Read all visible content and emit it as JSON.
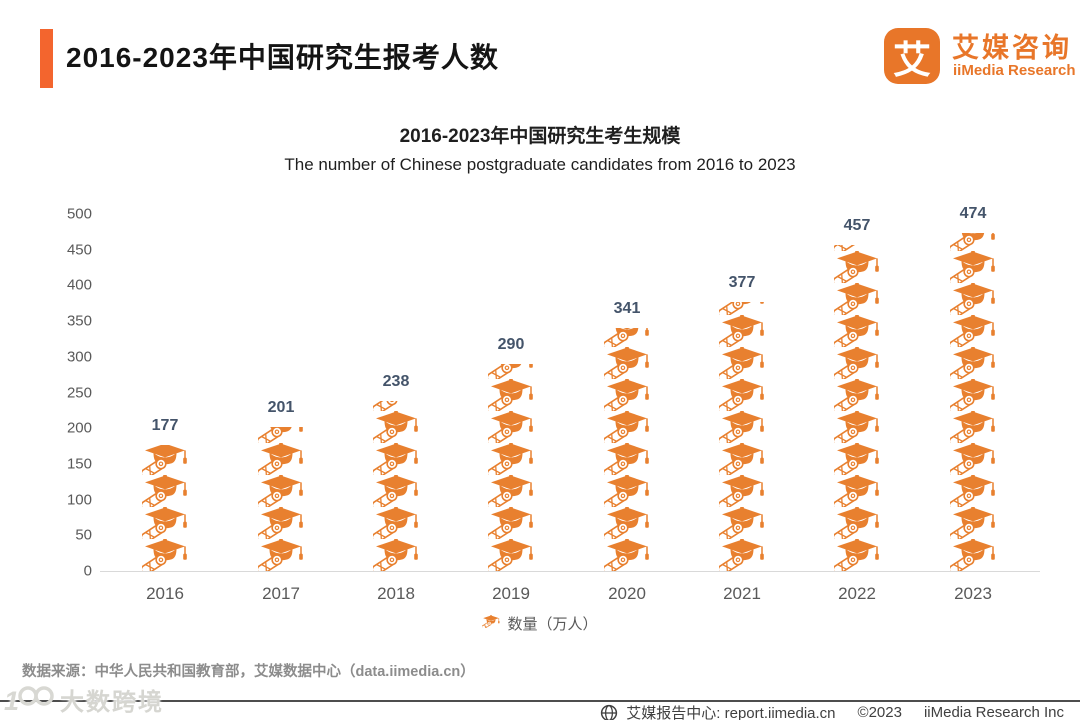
{
  "header": {
    "title": "2016-2023年中国研究生报考人数",
    "logo": {
      "glyph": "艾",
      "name_cn": "艾媒咨询",
      "name_en": "iiMedia Research"
    }
  },
  "chart_data": {
    "type": "bar",
    "title": "2016-2023年中国研究生考生规模",
    "subtitle": "The number of Chinese postgraduate candidates from 2016 to 2023",
    "categories": [
      "2016",
      "2017",
      "2018",
      "2019",
      "2020",
      "2021",
      "2022",
      "2023"
    ],
    "values": [
      177,
      201,
      238,
      290,
      341,
      377,
      457,
      474
    ],
    "ylim": [
      0,
      500
    ],
    "ytick_step": 50,
    "grid": false,
    "legend": "数量（万人）",
    "legend_position": "bottom",
    "bar_style": "pictogram-graduation-cap",
    "accent_color": "#E8802F",
    "value_label_color": "#44546A",
    "axis_label_color": "#595959"
  },
  "footer": {
    "source": "数据来源：中华人民共和国教育部，艾媒数据中心（data.iimedia.cn）",
    "report_center": "艾媒报告中心: report.iimedia.cn",
    "copyright": "©2023",
    "company": "iiMedia Research Inc",
    "watermark": "大数跨境"
  },
  "colors": {
    "header_accent": "#F3652E",
    "logo_orange": "#E87629",
    "icon_orange": "#E8802F"
  }
}
